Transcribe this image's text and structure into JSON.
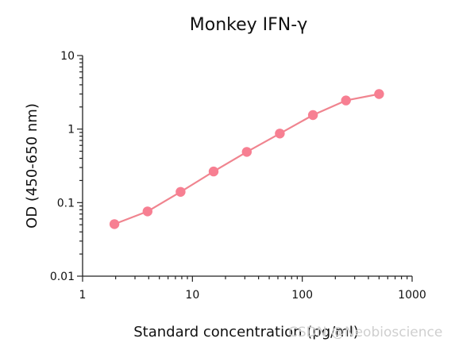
{
  "chart_data": {
    "type": "line",
    "title": "Monkey IFN-γ",
    "xlabel": "Standard concentration (pg/ml)",
    "ylabel": "OD (450-650 nm)",
    "x_scale": "log",
    "y_scale": "log",
    "xlim": [
      1,
      1000
    ],
    "ylim": [
      0.01,
      10
    ],
    "x_ticks": [
      {
        "value": 1,
        "label": "1"
      },
      {
        "value": 10,
        "label": "10"
      },
      {
        "value": 100,
        "label": "100"
      },
      {
        "value": 1000,
        "label": "1000"
      }
    ],
    "y_ticks": [
      {
        "value": 0.01,
        "label": "0.01"
      },
      {
        "value": 0.1,
        "label": "0.1"
      },
      {
        "value": 1,
        "label": "1"
      },
      {
        "value": 10,
        "label": "10"
      }
    ],
    "grid": false,
    "series": [
      {
        "color": "#f0848f",
        "marker_color": "#f77f92",
        "points": [
          {
            "x": 1.95,
            "y": 0.051
          },
          {
            "x": 3.9,
            "y": 0.076
          },
          {
            "x": 7.8,
            "y": 0.14
          },
          {
            "x": 15.6,
            "y": 0.265
          },
          {
            "x": 31.25,
            "y": 0.49
          },
          {
            "x": 62.5,
            "y": 0.87
          },
          {
            "x": 125,
            "y": 1.55
          },
          {
            "x": 250,
            "y": 2.45
          },
          {
            "x": 500,
            "y": 3.0
          }
        ]
      }
    ]
  },
  "watermark": "CSDN @Neobioscience"
}
